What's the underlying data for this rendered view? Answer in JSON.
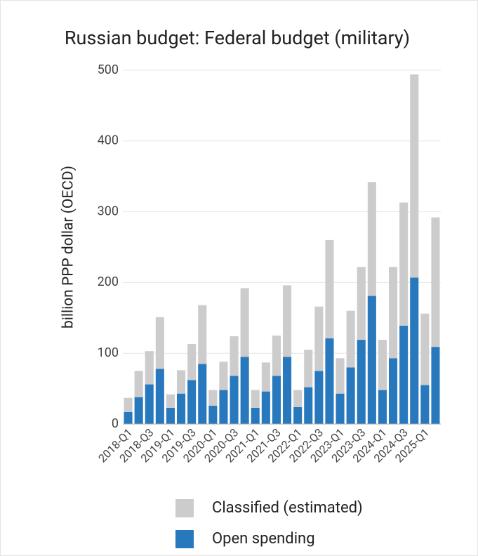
{
  "chart_data": {
    "type": "bar",
    "stacked": true,
    "title": "Russian budget: Federal budget (military)",
    "y_label": "billion PPP dollar (OECD)",
    "categories": [
      "2018-Q1",
      null,
      "2018-Q3",
      null,
      "2019-Q1",
      null,
      "2019-Q3",
      null,
      "2020-Q1",
      null,
      "2020-Q3",
      null,
      "2021-Q1",
      null,
      "2021-Q3",
      null,
      "2022-Q1",
      null,
      "2022-Q3",
      null,
      "2023-Q1",
      null,
      "2023-Q3",
      null,
      "2024-Q1",
      null,
      "2024-Q3",
      null,
      "2025-Q1",
      null
    ],
    "series": [
      {
        "name": "Open spending",
        "color": "#2878bd",
        "values": [
          17,
          38,
          56,
          78,
          23,
          43,
          62,
          85,
          26,
          48,
          68,
          95,
          23,
          46,
          68,
          95,
          24,
          52,
          75,
          121,
          43,
          80,
          119,
          181,
          48,
          93,
          139,
          207,
          55,
          109
        ]
      },
      {
        "name": "Classified (estimated)",
        "color": "#cccccc",
        "values": [
          20,
          37,
          47,
          73,
          19,
          33,
          51,
          83,
          22,
          40,
          56,
          97,
          25,
          41,
          57,
          101,
          24,
          53,
          91,
          139,
          50,
          80,
          103,
          161,
          71,
          129,
          174,
          287,
          101,
          183
        ]
      }
    ],
    "ylim": [
      0,
      500
    ],
    "yticks": [
      0,
      100,
      200,
      300,
      400,
      500
    ],
    "grid": true
  }
}
